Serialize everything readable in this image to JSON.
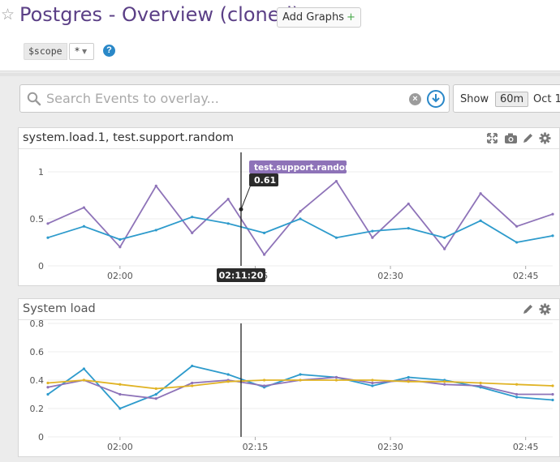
{
  "dashboard": {
    "title": "Postgres - Overview (cloned)",
    "add_graphs_label": "Add Graphs",
    "add_graphs_plus": "+",
    "scope": {
      "label": "$scope",
      "value": "*"
    }
  },
  "events": {
    "search_placeholder": "Search Events to overlay...",
    "show_label": "Show",
    "timeframe": "60m",
    "date": "Oct 1"
  },
  "colors": {
    "purple": "#8e73b8",
    "blue": "#2e9bcc",
    "yellow": "#e0b324",
    "title": "#5b3f86",
    "accent": "#2a88c8"
  },
  "icons": {
    "star": "star-icon",
    "search": "search-icon",
    "clear": "clear-icon",
    "overlay": "overlay-events-icon",
    "expand": "expand-icon",
    "snapshot": "camera-icon",
    "edit": "pencil-icon",
    "settings": "gear-icon"
  },
  "graphs": [
    {
      "title": "system.load.1, test.support.random",
      "tooltip": {
        "series": "test.support.random",
        "value": "0.61"
      },
      "cursor_time": "02:11:20",
      "chart_data": {
        "type": "line",
        "x": [
          "01:52",
          "01:56",
          "02:00",
          "02:04",
          "02:08",
          "02:12",
          "02:16",
          "02:20",
          "02:24",
          "02:28",
          "02:32",
          "02:36",
          "02:40",
          "02:44",
          "02:48"
        ],
        "xticks": [
          "02:00",
          "02:15",
          "02:30",
          "02:45"
        ],
        "yticks": [
          "0",
          "0.5",
          "1"
        ],
        "ylim": [
          0,
          1
        ],
        "series": [
          {
            "name": "test.support.random",
            "color": "purple",
            "values": [
              0.45,
              0.62,
              0.2,
              0.85,
              0.35,
              0.71,
              0.12,
              0.58,
              0.9,
              0.3,
              0.66,
              0.18,
              0.77,
              0.42,
              0.55
            ]
          },
          {
            "color": "blue",
            "values": [
              0.3,
              0.42,
              0.28,
              0.38,
              0.52,
              0.45,
              0.35,
              0.5,
              0.3,
              0.37,
              0.4,
              0.3,
              0.48,
              0.25,
              0.32
            ]
          }
        ]
      }
    },
    {
      "title": "System load",
      "chart_data": {
        "type": "line",
        "x": [
          "01:52",
          "01:56",
          "02:00",
          "02:04",
          "02:08",
          "02:12",
          "02:16",
          "02:20",
          "02:24",
          "02:28",
          "02:32",
          "02:36",
          "02:40",
          "02:44",
          "02:48"
        ],
        "xticks": [
          "02:00",
          "02:15",
          "02:30",
          "02:45"
        ],
        "yticks": [
          "0",
          "0.2",
          "0.4",
          "0.6",
          "0.8"
        ],
        "ylim": [
          0,
          0.8
        ],
        "series": [
          {
            "color": "blue",
            "values": [
              0.3,
              0.48,
              0.2,
              0.3,
              0.5,
              0.44,
              0.35,
              0.44,
              0.42,
              0.36,
              0.42,
              0.4,
              0.35,
              0.28,
              0.26
            ]
          },
          {
            "color": "purple",
            "values": [
              0.35,
              0.4,
              0.3,
              0.27,
              0.38,
              0.4,
              0.36,
              0.4,
              0.42,
              0.38,
              0.4,
              0.37,
              0.36,
              0.3,
              0.3
            ]
          },
          {
            "color": "yellow",
            "values": [
              0.38,
              0.4,
              0.37,
              0.34,
              0.36,
              0.39,
              0.4,
              0.4,
              0.4,
              0.4,
              0.39,
              0.39,
              0.38,
              0.37,
              0.36
            ]
          }
        ]
      }
    }
  ]
}
